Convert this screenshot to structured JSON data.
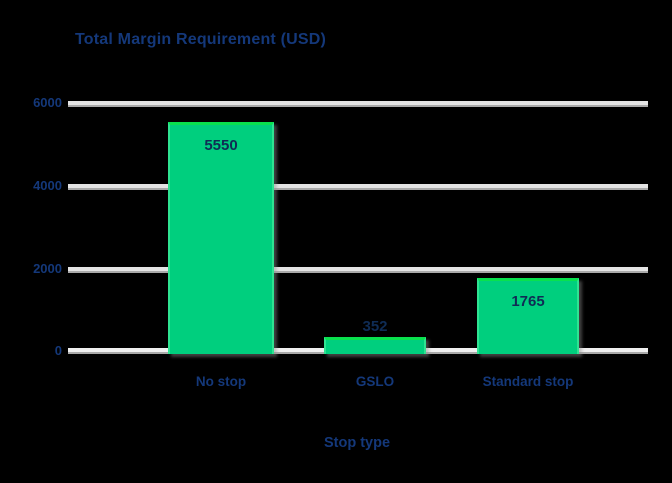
{
  "chart_data": {
    "type": "bar",
    "title": "Total Margin Requirement (USD)",
    "xlabel": "Stop type",
    "ylabel": "",
    "categories": [
      "No stop",
      "GSLO",
      "Standard stop"
    ],
    "values": [
      5550,
      352,
      1765
    ],
    "bar_labels": [
      "5550",
      "352",
      "1765"
    ],
    "ytick_labels": [
      "6000",
      "4000",
      "2000",
      "0"
    ],
    "yticks": [
      6000,
      4000,
      2000,
      0
    ],
    "ylim": [
      0,
      6000
    ],
    "grid": "horizontal gridlines on",
    "legend": "none",
    "bar_color": "#00cf7e",
    "bar_border_color": "#09e14e",
    "text_color": "#14387a",
    "bar_label_color": "#0f2c55",
    "background_color": "#000000",
    "gridline_color": "#e4e4e4"
  }
}
